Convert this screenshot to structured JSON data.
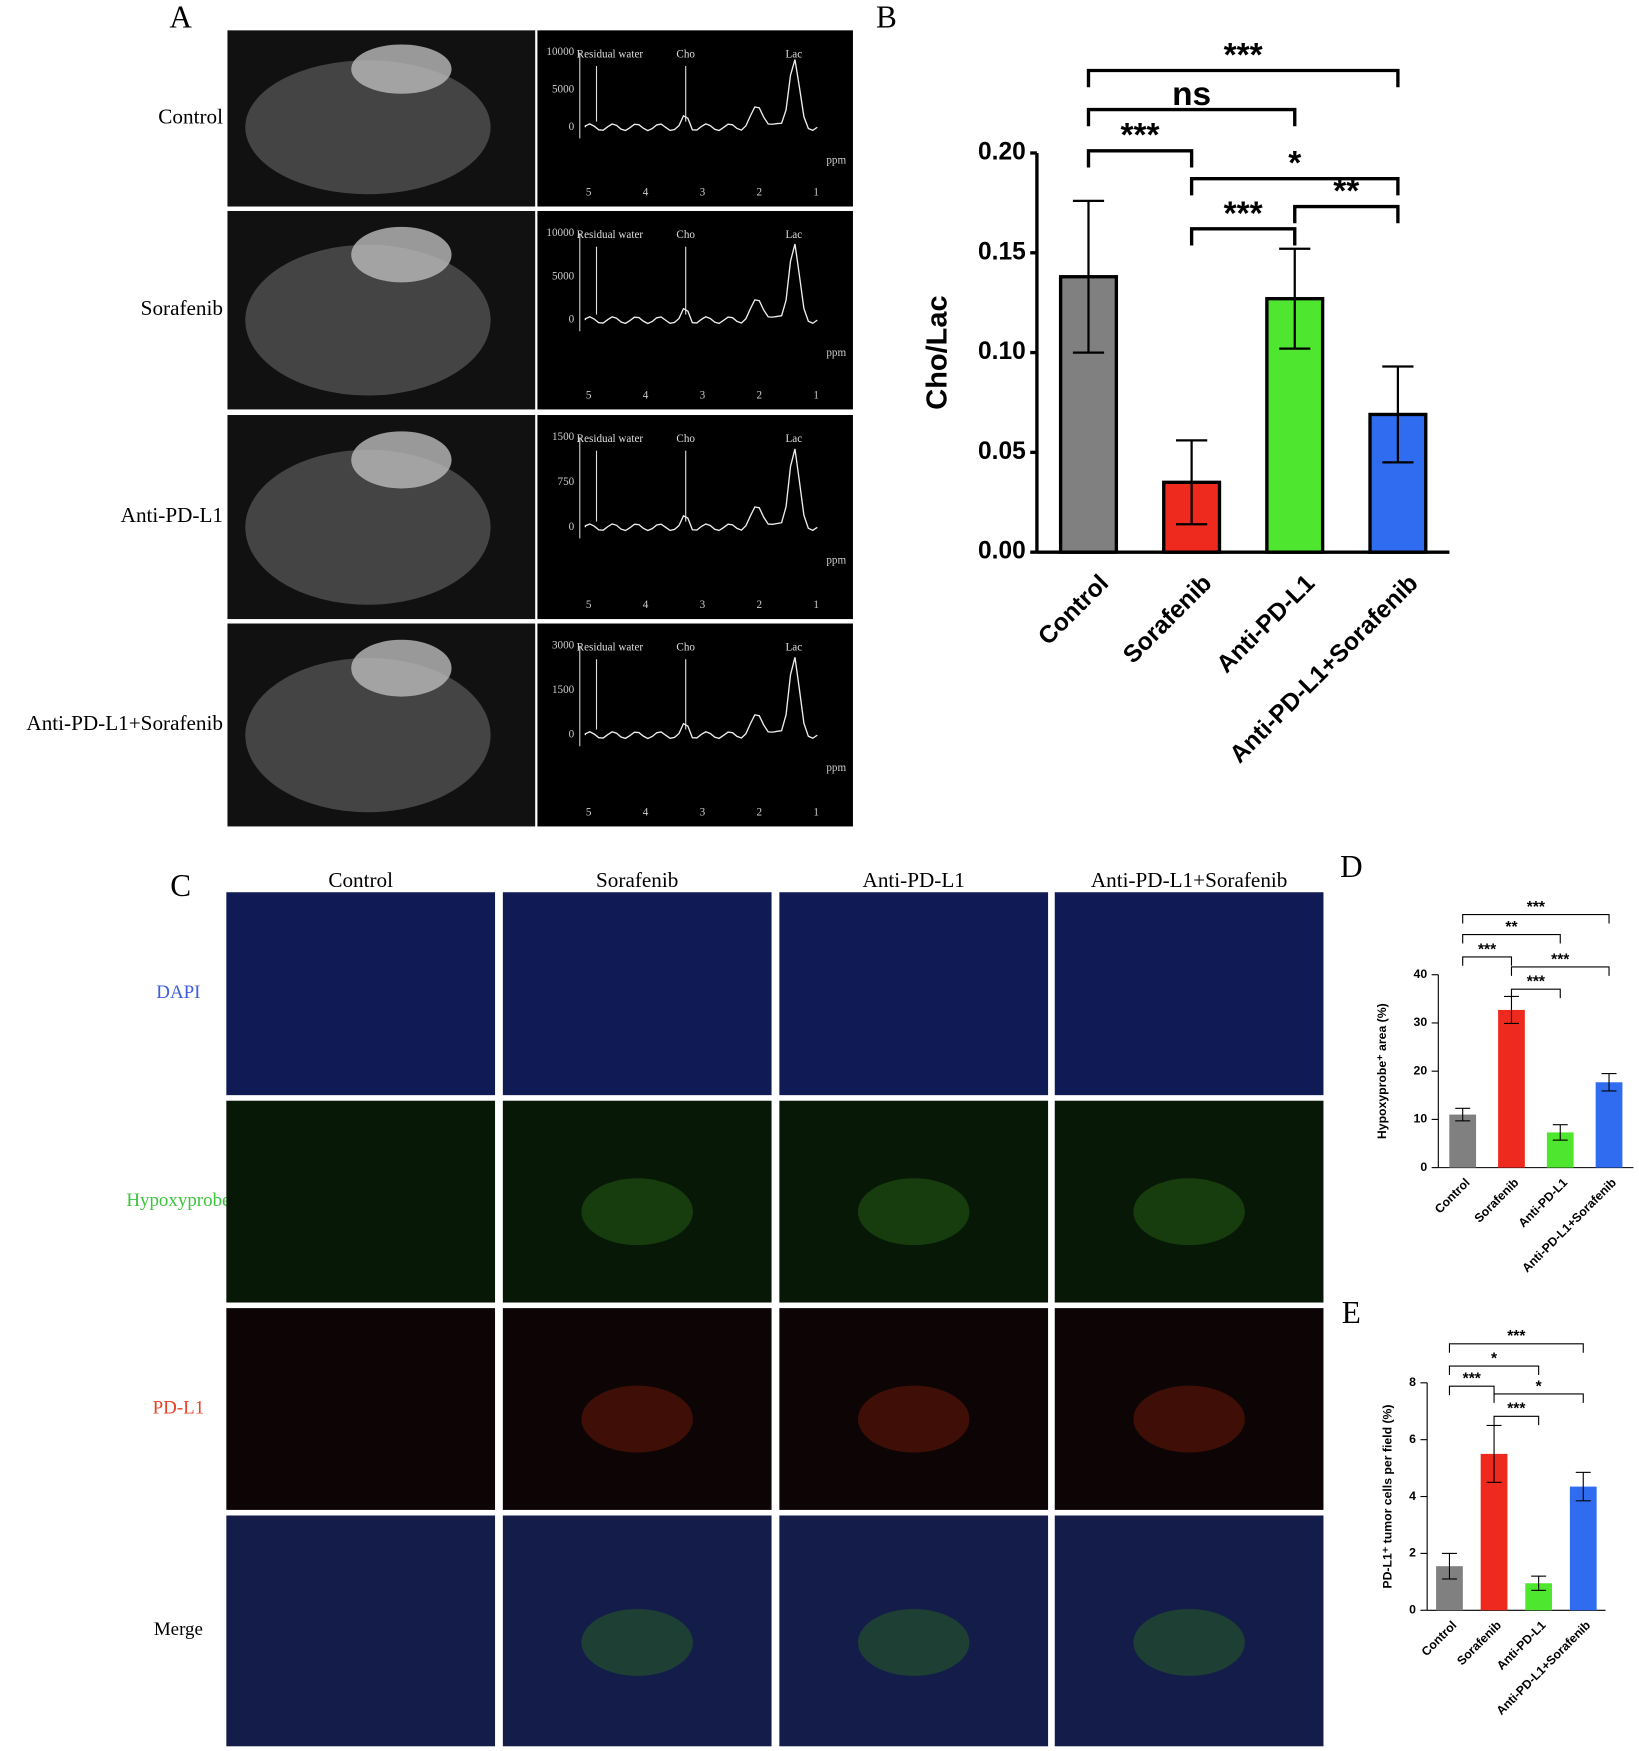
{
  "panel_letters": [
    "A",
    "B",
    "C",
    "D",
    "E"
  ],
  "panel_a": {
    "rows": [
      {
        "label": "Control",
        "peaks": [
          "Residual water",
          "Cho",
          "Lac"
        ],
        "yticks": [
          "10000",
          "5000",
          "0"
        ],
        "xticks": [
          "5",
          "4",
          "3",
          "2",
          "1"
        ],
        "unit": "ppm"
      },
      {
        "label": "Sorafenib",
        "peaks": [
          "Residual water",
          "Cho",
          "Lac"
        ],
        "yticks": [
          "10000",
          "5000",
          "0"
        ],
        "xticks": [
          "5",
          "4",
          "3",
          "2",
          "1"
        ],
        "unit": "ppm"
      },
      {
        "label": "Anti-PD-L1",
        "peaks": [
          "Residual water",
          "Cho",
          "Lac"
        ],
        "yticks": [
          "1500",
          "750",
          "0"
        ],
        "xticks": [
          "5",
          "4",
          "3",
          "2",
          "1"
        ],
        "unit": "ppm"
      },
      {
        "label": "Anti-PD-L1+Sorafenib",
        "peaks": [
          "Residual water",
          "Cho",
          "Lac"
        ],
        "yticks": [
          "3000",
          "1500",
          "0"
        ],
        "xticks": [
          "5",
          "4",
          "3",
          "2",
          "1"
        ],
        "unit": "ppm"
      }
    ]
  },
  "panel_c": {
    "columns": [
      "Control",
      "Sorafenib",
      "Anti-PD-L1",
      "Anti-PD-L1+Sorafenib"
    ],
    "rows": [
      {
        "label": "DAPI",
        "color": "#3d5ce0"
      },
      {
        "label": "Hypoxyprobe",
        "color": "#3cc43c"
      },
      {
        "label": "PD-L1",
        "color": "#e8402a"
      },
      {
        "label": "Merge",
        "color": "#000000"
      }
    ]
  },
  "chart_data": [
    {
      "type": "bar",
      "ylabel": "Cho/Lac",
      "categories": [
        "Control",
        "Sorafenib",
        "Anti-PD-L1",
        "Anti-PD-L1+Sorafenib"
      ],
      "values": [
        0.138,
        0.035,
        0.127,
        0.069
      ],
      "errors": [
        0.038,
        0.021,
        0.025,
        0.024
      ],
      "colors": [
        "#808080",
        "#ee2a1f",
        "#4ee62e",
        "#2f6cf0"
      ],
      "ylim": [
        0,
        0.2
      ],
      "yticks": [
        {
          "value": 0,
          "label": "0.00"
        },
        {
          "value": 0.05,
          "label": "0.05"
        },
        {
          "value": 0.1,
          "label": "0.10"
        },
        {
          "value": 0.15,
          "label": "0.15"
        },
        {
          "value": 0.2,
          "label": "0.20"
        }
      ],
      "significance": [
        {
          "groups": [
            "Control",
            "Sorafenib"
          ],
          "label": "***"
        },
        {
          "groups": [
            "Sorafenib",
            "Anti-PD-L1"
          ],
          "label": "***"
        },
        {
          "groups": [
            "Anti-PD-L1",
            "Anti-PD-L1+Sorafenib"
          ],
          "label": "**"
        },
        {
          "groups": [
            "Sorafenib",
            "Anti-PD-L1+Sorafenib"
          ],
          "label": "*"
        },
        {
          "groups": [
            "Control",
            "Anti-PD-L1"
          ],
          "label": "ns"
        },
        {
          "groups": [
            "Control",
            "Anti-PD-L1+Sorafenib"
          ],
          "label": "***"
        }
      ]
    },
    {
      "type": "bar",
      "ylabel": "Hypoxyprobe⁺ area (%)",
      "categories": [
        "Control",
        "Sorafenib",
        "Anti-PD-L1",
        "Anti-PD-L1+Sorafenib"
      ],
      "values": [
        11,
        32.7,
        7.3,
        17.7
      ],
      "errors": [
        1.3,
        2.8,
        1.6,
        1.8
      ],
      "colors": [
        "#808080",
        "#ee2a1f",
        "#4ee62e",
        "#2f6cf0"
      ],
      "ylim": [
        0,
        40
      ],
      "yticks": [
        0,
        10,
        20,
        30,
        40
      ],
      "significance": [
        {
          "groups": [
            "Sorafenib",
            "Anti-PD-L1"
          ],
          "label": "***"
        },
        {
          "groups": [
            "Sorafenib",
            "Anti-PD-L1+Sorafenib"
          ],
          "label": "***"
        },
        {
          "groups": [
            "Control",
            "Sorafenib"
          ],
          "label": "***"
        },
        {
          "groups": [
            "Control",
            "Anti-PD-L1"
          ],
          "label": "**"
        },
        {
          "groups": [
            "Control",
            "Anti-PD-L1+Sorafenib"
          ],
          "label": "***"
        }
      ]
    },
    {
      "type": "bar",
      "ylabel": "PD-L1⁺ tumor cells per field (%)",
      "categories": [
        "Control",
        "Sorafenib",
        "Anti-PD-L1",
        "Anti-PD-L1+Sorafenib"
      ],
      "values": [
        1.55,
        5.5,
        0.95,
        4.35
      ],
      "errors": [
        0.45,
        1.0,
        0.25,
        0.5
      ],
      "colors": [
        "#808080",
        "#ee2a1f",
        "#4ee62e",
        "#2f6cf0"
      ],
      "ylim": [
        0,
        8
      ],
      "yticks": [
        0,
        2,
        4,
        6,
        8
      ],
      "significance": [
        {
          "groups": [
            "Sorafenib",
            "Anti-PD-L1"
          ],
          "label": "***"
        },
        {
          "groups": [
            "Sorafenib",
            "Anti-PD-L1+Sorafenib"
          ],
          "label": "*"
        },
        {
          "groups": [
            "Control",
            "Sorafenib"
          ],
          "label": "***"
        },
        {
          "groups": [
            "Control",
            "Anti-PD-L1"
          ],
          "label": "*"
        },
        {
          "groups": [
            "Control",
            "Anti-PD-L1+Sorafenib"
          ],
          "label": "***"
        }
      ]
    }
  ]
}
